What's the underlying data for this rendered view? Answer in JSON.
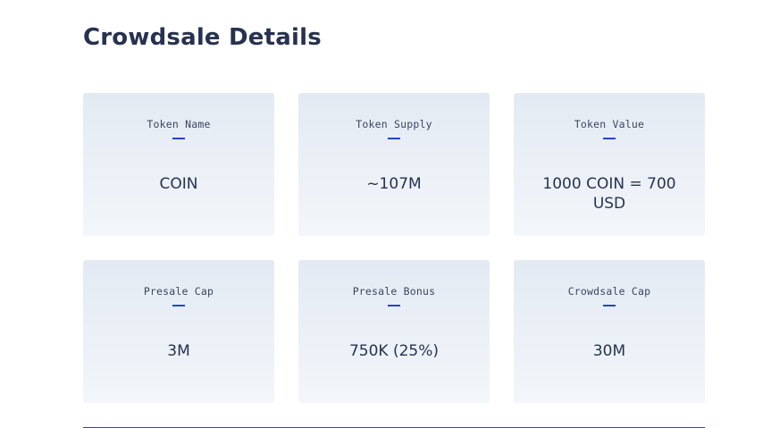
{
  "title": "Crowdsale Details",
  "colors": {
    "heading": "#27324f",
    "accent": "#1f46d6",
    "card_top": "#e3eaf3",
    "card_bottom": "#f3f6fa"
  },
  "cards": [
    {
      "label": "Token Name",
      "value": "COIN"
    },
    {
      "label": "Token Supply",
      "value": "~107M"
    },
    {
      "label": "Token Value",
      "value": "1000 COIN = 700 USD"
    },
    {
      "label": "Presale Cap",
      "value": "3M"
    },
    {
      "label": "Presale Bonus",
      "value": "750K (25%)"
    },
    {
      "label": "Crowdsale Cap",
      "value": "30M"
    }
  ]
}
